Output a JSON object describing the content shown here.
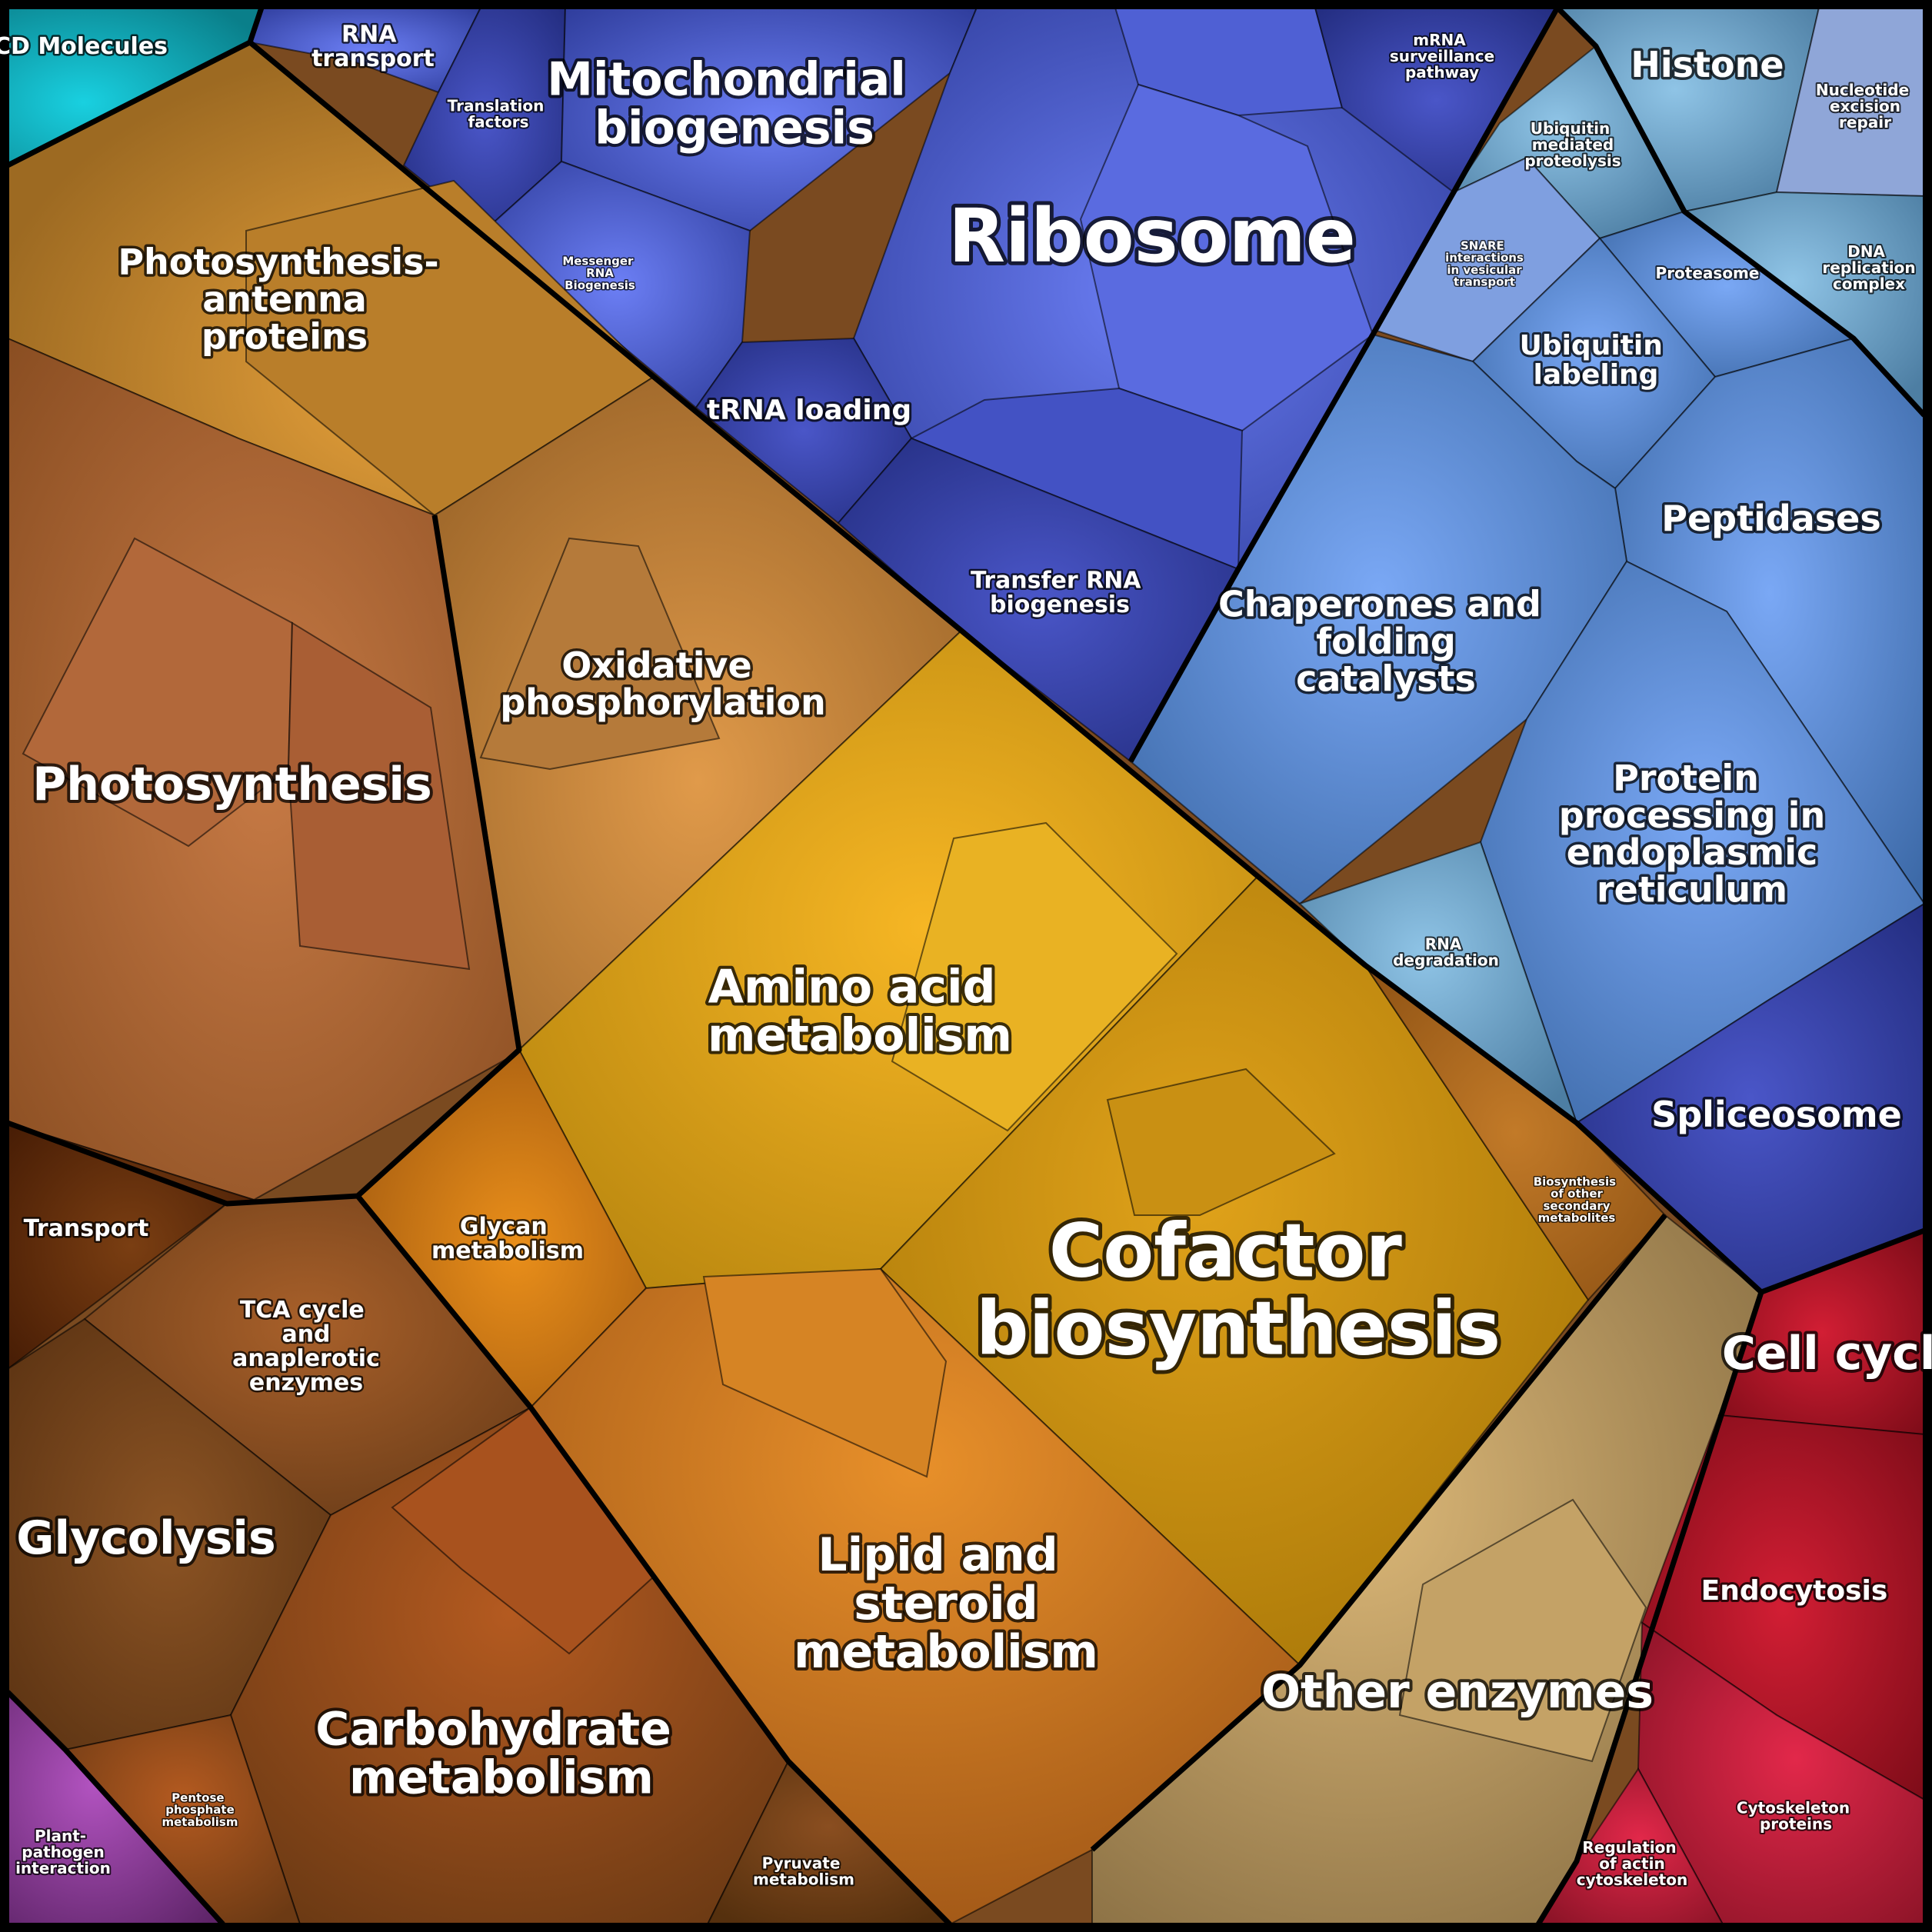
{
  "colors": {
    "blue": "#5668e0",
    "light_blue": "#6f97d8",
    "orange_brown": "#b06a35",
    "amber": "#e2a420",
    "gold": "#d49a1a",
    "tan": "#b08e5a",
    "red": "#b0162a",
    "teal": "#12b3c1",
    "purple": "#8c3f9a",
    "dark_brown": "#6a3010"
  },
  "labels": {
    "cd_molecules": "CD Molecules",
    "rna_transport": "RNA transport",
    "translation_factors": "Translation factors",
    "mitochondrial_biogenesis": "Mitochondrial biogenesis",
    "ribosome": "Ribosome",
    "mrna_surveillance": "mRNA surveillance pathway",
    "histone": "Histone",
    "nucleotide_excision_repair": "Nucleotide excision repair",
    "ubiquitin_mediated_proteolysis": "Ubiquitin mediated proteolysis",
    "snare": "SNARE interactions in vesicular transport",
    "proteasome": "Proteasome",
    "dna_replication_complex": "DNA replication complex",
    "messenger_rna_biogenesis": "Messenger RNA Biogenesis",
    "ubiquitin_labeling": "Ubiquitin labeling",
    "trna_loading": "tRNA loading",
    "peptidases": "Peptidases",
    "transfer_rna_biogenesis": "Transfer RNA biogenesis",
    "chaperones": "Chaperones and folding catalysts",
    "protein_processing_er": "Protein processing in endoplasmic reticulum",
    "rna_degradation": "RNA degradation",
    "spliceosome": "Spliceosome",
    "photosynthesis_antenna": "Photosynthesis- antenna proteins",
    "oxidative_phosphorylation": "Oxidative phosphorylation",
    "photosynthesis": "Photosynthesis",
    "amino_acid_metabolism": "Amino acid metabolism",
    "transport": "Transport",
    "glycan_metabolism": "Glycan metabolism",
    "tca_cycle": "TCA cycle and anaplerotic enzymes",
    "biosynthesis_secondary": "Biosynthesis of other secondary metabolites",
    "cofactor_biosynthesis": "Cofactor biosynthesis",
    "cell_cycle": "Cell cycle",
    "glycolysis": "Glycolysis",
    "lipid_steroid": "Lipid and steroid metabolism",
    "endocytosis": "Endocytosis",
    "other_enzymes": "Other enzymes",
    "carbohydrate_metabolism": "Carbohydrate metabolism",
    "pentose_phosphate": "Pentose phosphate metabolism",
    "cytoskeleton_proteins": "Cytoskeleton proteins",
    "plant_pathogen": "Plant- pathogen interaction",
    "pyruvate_metabolism": "Pyruvate metabolism",
    "regulation_actin": "Regulation of actin cytoskeleton"
  }
}
